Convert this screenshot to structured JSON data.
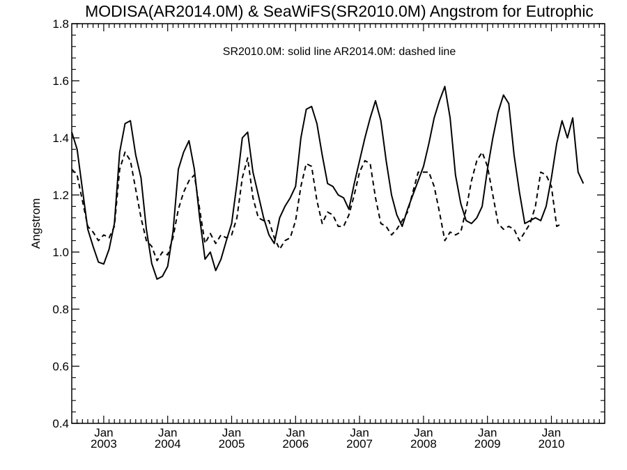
{
  "chart_data": {
    "type": "line",
    "title": "MODISA(AR2014.0M) & SeaWiFS(SR2010.0M)  Angstrom for Eutrophic",
    "annotation": "SR2010.0M: solid line   AR2014.0M: dashed line",
    "xlabel": "",
    "ylabel": "Angstrom",
    "ylim": [
      0.4,
      1.8
    ],
    "y_ticks": [
      0.4,
      0.6,
      0.8,
      1.0,
      1.2,
      1.4,
      1.6,
      1.8
    ],
    "y_tick_labels": [
      "0.4",
      "0.6",
      "0.8",
      "1.0",
      "1.2",
      "1.4",
      "1.6",
      "1.8"
    ],
    "xlim": [
      "2002-07",
      "2010-10"
    ],
    "x_tick_month_label": "Jan",
    "x_tick_years": [
      "2003",
      "2004",
      "2005",
      "2006",
      "2007",
      "2008",
      "2009",
      "2010"
    ],
    "x": [
      "2002-07",
      "2002-08",
      "2002-09",
      "2002-10",
      "2002-11",
      "2002-12",
      "2003-01",
      "2003-02",
      "2003-03",
      "2003-04",
      "2003-05",
      "2003-06",
      "2003-07",
      "2003-08",
      "2003-09",
      "2003-10",
      "2003-11",
      "2003-12",
      "2004-01",
      "2004-02",
      "2004-03",
      "2004-04",
      "2004-05",
      "2004-06",
      "2004-07",
      "2004-08",
      "2004-09",
      "2004-10",
      "2004-11",
      "2004-12",
      "2005-01",
      "2005-02",
      "2005-03",
      "2005-04",
      "2005-05",
      "2005-06",
      "2005-07",
      "2005-08",
      "2005-09",
      "2005-10",
      "2005-11",
      "2005-12",
      "2006-01",
      "2006-02",
      "2006-03",
      "2006-04",
      "2006-05",
      "2006-06",
      "2006-07",
      "2006-08",
      "2006-09",
      "2006-10",
      "2006-11",
      "2006-12",
      "2007-01",
      "2007-02",
      "2007-03",
      "2007-04",
      "2007-05",
      "2007-06",
      "2007-07",
      "2007-08",
      "2007-09",
      "2007-10",
      "2007-11",
      "2007-12",
      "2008-01",
      "2008-02",
      "2008-03",
      "2008-04",
      "2008-05",
      "2008-06",
      "2008-07",
      "2008-08",
      "2008-09",
      "2008-10",
      "2008-11",
      "2008-12",
      "2009-01",
      "2009-02",
      "2009-03",
      "2009-04",
      "2009-05",
      "2009-06",
      "2009-07",
      "2009-08",
      "2009-09",
      "2009-10",
      "2009-11",
      "2009-12",
      "2010-01",
      "2010-02",
      "2010-03",
      "2010-04",
      "2010-05",
      "2010-06",
      "2010-07",
      "2010-08",
      "2010-09",
      "2010-10"
    ],
    "series": [
      {
        "name": "SR2010.0M",
        "style": "solid",
        "color": "#000000",
        "values": [
          1.42,
          1.36,
          1.22,
          1.08,
          1.02,
          0.965,
          0.958,
          1.01,
          1.1,
          1.35,
          1.45,
          1.46,
          1.34,
          1.26,
          1.08,
          0.96,
          0.905,
          0.915,
          0.95,
          1.07,
          1.29,
          1.35,
          1.39,
          1.29,
          1.12,
          0.975,
          1.0,
          0.935,
          0.975,
          1.04,
          1.1,
          1.24,
          1.4,
          1.42,
          1.28,
          1.2,
          1.12,
          1.06,
          1.03,
          1.12,
          1.16,
          1.19,
          1.23,
          1.4,
          1.5,
          1.51,
          1.45,
          1.34,
          1.24,
          1.23,
          1.2,
          1.19,
          1.15,
          1.24,
          1.32,
          1.4,
          1.47,
          1.53,
          1.46,
          1.32,
          1.2,
          1.13,
          1.09,
          1.15,
          1.2,
          1.25,
          1.3,
          1.38,
          1.47,
          1.53,
          1.58,
          1.47,
          1.27,
          1.17,
          1.11,
          1.1,
          1.12,
          1.16,
          1.29,
          1.4,
          1.49,
          1.55,
          1.52,
          1.34,
          1.21,
          1.1,
          1.11,
          1.12,
          1.11,
          1.16,
          1.26,
          1.38,
          1.46,
          1.4,
          1.47,
          1.28,
          1.24,
          null,
          null,
          null
        ]
      },
      {
        "name": "AR2014.0M",
        "style": "dashed",
        "color": "#000000",
        "values": [
          1.29,
          1.27,
          1.18,
          1.09,
          1.07,
          1.04,
          1.06,
          1.05,
          1.09,
          1.29,
          1.35,
          1.32,
          1.22,
          1.12,
          1.04,
          1.02,
          0.97,
          1.0,
          0.99,
          1.05,
          1.15,
          1.21,
          1.25,
          1.27,
          1.15,
          1.03,
          1.065,
          1.03,
          1.06,
          1.05,
          1.06,
          1.12,
          1.26,
          1.33,
          1.19,
          1.12,
          1.11,
          1.11,
          1.05,
          1.01,
          1.04,
          1.05,
          1.11,
          1.23,
          1.31,
          1.3,
          1.18,
          1.1,
          1.14,
          1.13,
          1.09,
          1.09,
          1.13,
          1.2,
          1.28,
          1.32,
          1.31,
          1.19,
          1.1,
          1.09,
          1.06,
          1.08,
          1.11,
          1.14,
          1.21,
          1.28,
          1.28,
          1.28,
          1.23,
          1.14,
          1.04,
          1.07,
          1.06,
          1.07,
          1.15,
          1.25,
          1.32,
          1.35,
          1.3,
          1.2,
          1.1,
          1.08,
          1.09,
          1.08,
          1.04,
          1.07,
          1.1,
          1.16,
          1.28,
          1.27,
          1.23,
          1.09,
          1.1,
          null,
          null,
          null,
          null,
          null,
          null,
          null
        ]
      }
    ],
    "grid": false,
    "legend": "none"
  }
}
